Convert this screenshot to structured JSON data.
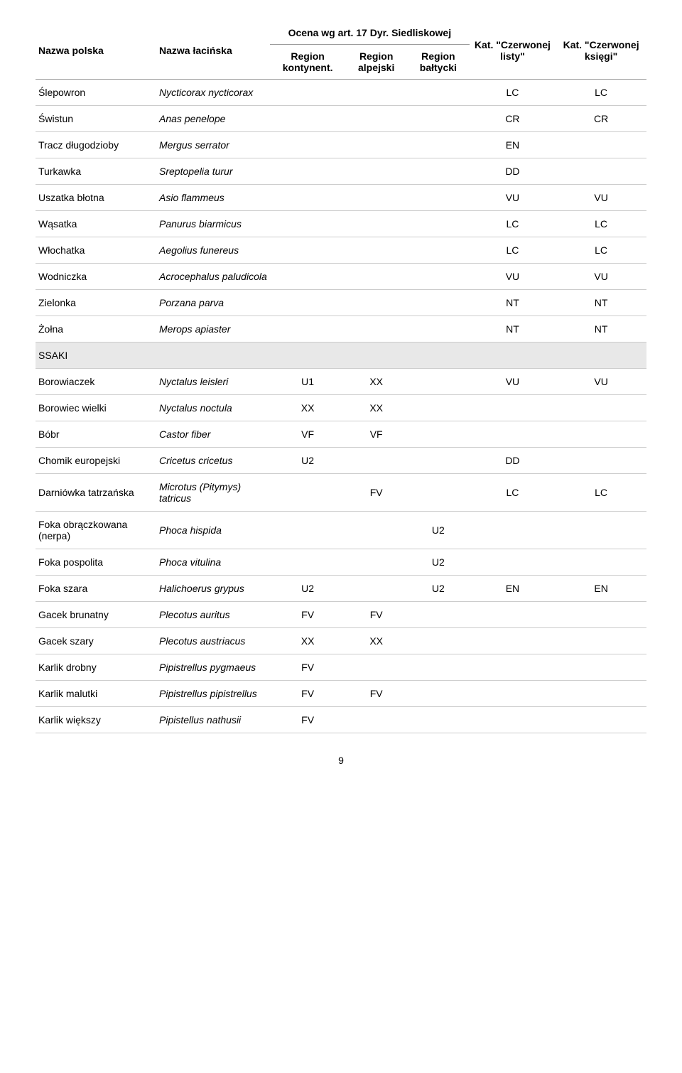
{
  "headers": {
    "name_pl": "Nazwa polska",
    "name_la": "Nazwa łacińska",
    "assessment": "Ocena wg art. 17 Dyr. Siedliskowej",
    "red_list": "Kat. \"Czerwonej listy\"",
    "red_book": "Kat. \"Czerwonej księgi\"",
    "region_cont": "Region kontynent.",
    "region_alp": "Region alpejski",
    "region_balt": "Region bałtycki"
  },
  "rows": [
    {
      "pl": "Ślepowron",
      "la": "Nycticorax nycticorax",
      "c": "",
      "a": "",
      "b": "",
      "rl": "LC",
      "rb": "LC"
    },
    {
      "pl": "Świstun",
      "la": "Anas penelope",
      "c": "",
      "a": "",
      "b": "",
      "rl": "CR",
      "rb": "CR"
    },
    {
      "pl": "Tracz długodzioby",
      "la": "Mergus serrator",
      "c": "",
      "a": "",
      "b": "",
      "rl": "EN",
      "rb": ""
    },
    {
      "pl": "Turkawka",
      "la": "Sreptopelia turur",
      "c": "",
      "a": "",
      "b": "",
      "rl": "DD",
      "rb": ""
    },
    {
      "pl": "Uszatka błotna",
      "la": "Asio flammeus",
      "c": "",
      "a": "",
      "b": "",
      "rl": "VU",
      "rb": "VU"
    },
    {
      "pl": "Wąsatka",
      "la": "Panurus biarmicus",
      "c": "",
      "a": "",
      "b": "",
      "rl": "LC",
      "rb": "LC"
    },
    {
      "pl": "Włochatka",
      "la": "Aegolius funereus",
      "c": "",
      "a": "",
      "b": "",
      "rl": "LC",
      "rb": "LC"
    },
    {
      "pl": "Wodniczka",
      "la": "Acrocephalus paludicola",
      "c": "",
      "a": "",
      "b": "",
      "rl": "VU",
      "rb": "VU"
    },
    {
      "pl": "Zielonka",
      "la": "Porzana parva",
      "c": "",
      "a": "",
      "b": "",
      "rl": "NT",
      "rb": "NT"
    },
    {
      "pl": "Żołna",
      "la": "Merops apiaster",
      "c": "",
      "a": "",
      "b": "",
      "rl": "NT",
      "rb": "NT"
    },
    {
      "section": "SSAKI"
    },
    {
      "pl": "Borowiaczek",
      "la": "Nyctalus leisleri",
      "c": "U1",
      "a": "XX",
      "b": "",
      "rl": "VU",
      "rb": "VU"
    },
    {
      "pl": "Borowiec wielki",
      "la": "Nyctalus noctula",
      "c": "XX",
      "a": "XX",
      "b": "",
      "rl": "",
      "rb": ""
    },
    {
      "pl": "Bóbr",
      "la": "Castor fiber",
      "c": "VF",
      "a": "VF",
      "b": "",
      "rl": "",
      "rb": ""
    },
    {
      "pl": "Chomik europejski",
      "la": "Cricetus cricetus",
      "c": "U2",
      "a": "",
      "b": "",
      "rl": "DD",
      "rb": ""
    },
    {
      "pl": "Darniówka tatrzańska",
      "la": "Microtus (Pitymys) tatricus",
      "c": "",
      "a": "FV",
      "b": "",
      "rl": "LC",
      "rb": "LC"
    },
    {
      "pl": "Foka obrączkowana (nerpa)",
      "la": "Phoca hispida",
      "c": "",
      "a": "",
      "b": "U2",
      "rl": "",
      "rb": ""
    },
    {
      "pl": "Foka pospolita",
      "la": "Phoca vitulina",
      "c": "",
      "a": "",
      "b": "U2",
      "rl": "",
      "rb": ""
    },
    {
      "pl": "Foka szara",
      "la": "Halichoerus grypus",
      "c": "U2",
      "a": "",
      "b": "U2",
      "rl": "EN",
      "rb": "EN"
    },
    {
      "pl": "Gacek brunatny",
      "la": "Plecotus auritus",
      "c": "FV",
      "a": "FV",
      "b": "",
      "rl": "",
      "rb": ""
    },
    {
      "pl": "Gacek szary",
      "la": "Plecotus austriacus",
      "c": "XX",
      "a": "XX",
      "b": "",
      "rl": "",
      "rb": ""
    },
    {
      "pl": "Karlik drobny",
      "la": "Pipistrellus pygmaeus",
      "c": "FV",
      "a": "",
      "b": "",
      "rl": "",
      "rb": ""
    },
    {
      "pl": "Karlik malutki",
      "la": "Pipistrellus pipistrellus",
      "c": "FV",
      "a": "FV",
      "b": "",
      "rl": "",
      "rb": ""
    },
    {
      "pl": "Karlik większy",
      "la": "Pipistellus nathusii",
      "c": "FV",
      "a": "",
      "b": "",
      "rl": "",
      "rb": ""
    }
  ],
  "page_number": "9",
  "styles": {
    "body_font_size": 14,
    "body_width": 960,
    "background_color": "#ffffff",
    "text_color": "#000000",
    "header_border_color": "#999999",
    "row_border_color": "#cccccc",
    "section_bg": "#e8e8e8",
    "col_widths": {
      "name_pl": 170,
      "name_la": 160
    }
  }
}
